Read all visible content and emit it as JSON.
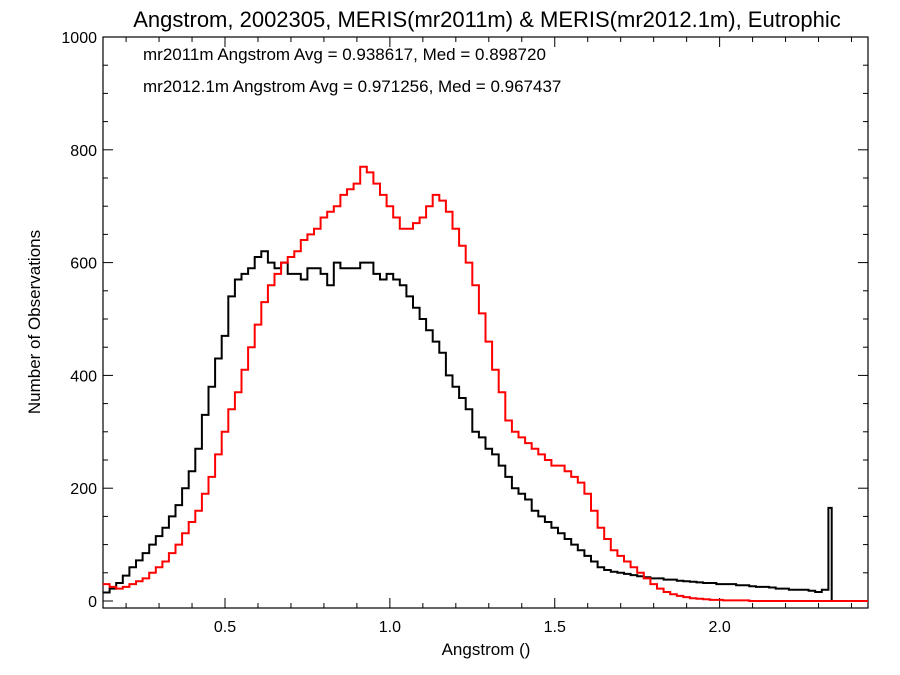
{
  "chart_data": {
    "type": "line",
    "title": "Angstrom, 2002305, MERIS(mr2011m) & MERIS(mr2012.1m), Eutrophic",
    "xlabel": "Angstrom ()",
    "ylabel": "Number of Observations",
    "xlim": [
      0.13,
      2.45
    ],
    "ylim": [
      0,
      1000
    ],
    "xticks": [
      0.5,
      1.0,
      1.5,
      2.0
    ],
    "xtick_labels": [
      "0.5",
      "1.0",
      "1.5",
      "2.0"
    ],
    "yticks": [
      0,
      200,
      400,
      600,
      800,
      1000
    ],
    "ytick_labels": [
      "0",
      "200",
      "400",
      "600",
      "800",
      "1000"
    ],
    "grid": false,
    "series": [
      {
        "name": "mr2011m",
        "color": "#000000",
        "annotation": "mr2011m Angstrom Avg = 0.938617, Med = 0.898720",
        "x": [
          0.13,
          0.15,
          0.17,
          0.19,
          0.21,
          0.23,
          0.25,
          0.27,
          0.29,
          0.31,
          0.33,
          0.35,
          0.37,
          0.39,
          0.41,
          0.43,
          0.45,
          0.47,
          0.49,
          0.51,
          0.53,
          0.55,
          0.57,
          0.59,
          0.61,
          0.63,
          0.65,
          0.67,
          0.69,
          0.71,
          0.73,
          0.75,
          0.77,
          0.79,
          0.81,
          0.83,
          0.85,
          0.87,
          0.89,
          0.91,
          0.93,
          0.95,
          0.97,
          0.99,
          1.01,
          1.03,
          1.05,
          1.07,
          1.09,
          1.11,
          1.13,
          1.15,
          1.17,
          1.19,
          1.21,
          1.23,
          1.25,
          1.27,
          1.29,
          1.31,
          1.33,
          1.35,
          1.37,
          1.39,
          1.41,
          1.43,
          1.45,
          1.47,
          1.49,
          1.51,
          1.53,
          1.55,
          1.57,
          1.59,
          1.61,
          1.63,
          1.65,
          1.67,
          1.69,
          1.71,
          1.73,
          1.75,
          1.77,
          1.79,
          1.81,
          1.83,
          1.85,
          1.87,
          1.89,
          1.91,
          1.93,
          1.95,
          1.97,
          1.99,
          2.01,
          2.03,
          2.05,
          2.07,
          2.09,
          2.11,
          2.13,
          2.15,
          2.17,
          2.19,
          2.21,
          2.23,
          2.25,
          2.27,
          2.29,
          2.31,
          2.33,
          2.34
        ],
        "values": [
          15,
          22,
          32,
          45,
          60,
          72,
          85,
          100,
          115,
          130,
          150,
          170,
          200,
          230,
          270,
          330,
          380,
          430,
          470,
          540,
          570,
          580,
          590,
          610,
          620,
          600,
          590,
          600,
          580,
          580,
          570,
          590,
          590,
          580,
          560,
          600,
          590,
          590,
          590,
          600,
          600,
          580,
          570,
          580,
          570,
          560,
          540,
          520,
          500,
          480,
          460,
          440,
          400,
          380,
          360,
          340,
          300,
          290,
          270,
          260,
          240,
          220,
          200,
          190,
          180,
          160,
          150,
          140,
          130,
          120,
          110,
          100,
          90,
          80,
          70,
          60,
          55,
          52,
          50,
          48,
          46,
          44,
          42,
          40,
          40,
          38,
          38,
          36,
          35,
          34,
          33,
          32,
          32,
          30,
          30,
          30,
          28,
          28,
          26,
          25,
          25,
          24,
          22,
          22,
          20,
          20,
          20,
          18,
          16,
          20,
          165,
          0
        ]
      },
      {
        "name": "mr2012.1m",
        "color": "#ff0000",
        "annotation": "mr2012.1m Angstrom Avg = 0.971256, Med = 0.967437",
        "x": [
          0.13,
          0.15,
          0.17,
          0.19,
          0.21,
          0.23,
          0.25,
          0.27,
          0.29,
          0.31,
          0.33,
          0.35,
          0.37,
          0.39,
          0.41,
          0.43,
          0.45,
          0.47,
          0.49,
          0.51,
          0.53,
          0.55,
          0.57,
          0.59,
          0.61,
          0.63,
          0.65,
          0.67,
          0.69,
          0.71,
          0.73,
          0.75,
          0.77,
          0.79,
          0.81,
          0.83,
          0.85,
          0.87,
          0.89,
          0.91,
          0.93,
          0.95,
          0.97,
          0.99,
          1.01,
          1.03,
          1.05,
          1.07,
          1.09,
          1.11,
          1.13,
          1.15,
          1.17,
          1.19,
          1.21,
          1.23,
          1.25,
          1.27,
          1.29,
          1.31,
          1.33,
          1.35,
          1.37,
          1.39,
          1.41,
          1.43,
          1.45,
          1.47,
          1.49,
          1.51,
          1.53,
          1.55,
          1.57,
          1.59,
          1.61,
          1.63,
          1.65,
          1.67,
          1.69,
          1.71,
          1.73,
          1.75,
          1.77,
          1.79,
          1.81,
          1.83,
          1.85,
          1.87,
          1.89,
          1.91,
          1.93,
          1.95,
          1.97,
          1.99,
          2.01,
          2.03,
          2.05,
          2.07,
          2.09,
          2.11,
          2.13,
          2.15,
          2.17,
          2.19,
          2.21,
          2.23,
          2.25,
          2.27,
          2.29,
          2.31,
          2.33,
          2.35,
          2.37,
          2.39,
          2.41,
          2.43
        ],
        "values": [
          30,
          25,
          22,
          25,
          30,
          35,
          40,
          50,
          60,
          70,
          85,
          100,
          120,
          140,
          160,
          190,
          220,
          260,
          300,
          340,
          370,
          410,
          450,
          490,
          530,
          560,
          580,
          600,
          610,
          620,
          640,
          650,
          660,
          680,
          690,
          700,
          720,
          730,
          740,
          770,
          760,
          740,
          720,
          700,
          680,
          660,
          660,
          670,
          680,
          700,
          720,
          710,
          690,
          660,
          630,
          600,
          560,
          510,
          460,
          410,
          370,
          320,
          300,
          290,
          280,
          270,
          260,
          250,
          240,
          240,
          230,
          220,
          210,
          190,
          160,
          130,
          110,
          90,
          80,
          70,
          60,
          50,
          40,
          30,
          22,
          16,
          12,
          9,
          7,
          5,
          4,
          3,
          2,
          2,
          1,
          1,
          1,
          1,
          0,
          0,
          0,
          0,
          0,
          0,
          0,
          0,
          0,
          0,
          0,
          0,
          0,
          0,
          0,
          0,
          0,
          0
        ]
      }
    ]
  }
}
